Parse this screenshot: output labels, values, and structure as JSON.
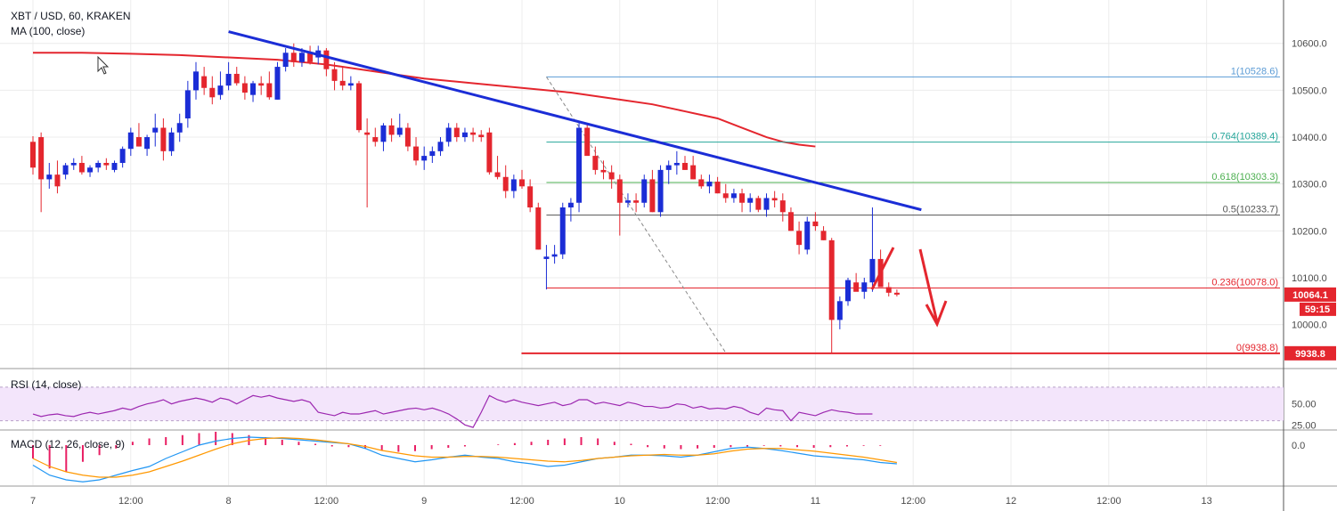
{
  "header": {
    "symbol": "XBT / USD, 60, KRAKEN",
    "ma": "MA (100, close)",
    "rsi": "RSI (14, close)",
    "macd": "MACD (12, 26, close, 9)"
  },
  "colors": {
    "up": "#1b2dd6",
    "down": "#e4262e",
    "ma": "#e4262e",
    "trend": "#1b2dd6",
    "rsi": "#9c27b0",
    "rsi_band": "#f3e5fb",
    "macd": "#2196f3",
    "signal": "#ff9800",
    "hist": "#e91e63",
    "grid": "#ececec"
  },
  "chart_data": {
    "type": "candlestick",
    "x_labels": [
      "7",
      "12:00",
      "8",
      "12:00",
      "9",
      "12:00",
      "10",
      "12:00",
      "11",
      "12:00",
      "12",
      "12:00",
      "13"
    ],
    "x_label_hours": [
      0,
      12,
      24,
      36,
      48,
      60,
      72,
      84,
      96,
      108,
      120,
      132,
      144
    ],
    "price_axis": {
      "ticks": [
        "10600.0",
        "10500.0",
        "10400.0",
        "10300.0",
        "10200.0",
        "10100.0",
        "10000.0"
      ],
      "tick_values": [
        10600,
        10500,
        10400,
        10300,
        10200,
        10100,
        10000
      ],
      "range": [
        9910,
        10685
      ]
    },
    "candles_ohlc": [
      [
        10390,
        10402,
        10320,
        10335
      ],
      [
        10400,
        10410,
        10240,
        10310
      ],
      [
        10310,
        10345,
        10290,
        10320
      ],
      [
        10320,
        10350,
        10280,
        10295
      ],
      [
        10320,
        10345,
        10310,
        10340
      ],
      [
        10340,
        10355,
        10330,
        10345
      ],
      [
        10345,
        10360,
        10320,
        10325
      ],
      [
        10325,
        10340,
        10315,
        10335
      ],
      [
        10335,
        10350,
        10325,
        10345
      ],
      [
        10345,
        10355,
        10330,
        10340
      ],
      [
        10330,
        10350,
        10325,
        10345
      ],
      [
        10345,
        10380,
        10335,
        10375
      ],
      [
        10375,
        10420,
        10360,
        10410
      ],
      [
        10400,
        10430,
        10380,
        10380
      ],
      [
        10375,
        10405,
        10360,
        10400
      ],
      [
        10410,
        10450,
        10380,
        10420
      ],
      [
        10420,
        10440,
        10350,
        10370
      ],
      [
        10370,
        10420,
        10360,
        10410
      ],
      [
        10410,
        10450,
        10390,
        10430
      ],
      [
        10440,
        10520,
        10420,
        10500
      ],
      [
        10500,
        10560,
        10480,
        10540
      ],
      [
        10530,
        10550,
        10490,
        10505
      ],
      [
        10505,
        10530,
        10470,
        10485
      ],
      [
        10490,
        10540,
        10480,
        10510
      ],
      [
        10510,
        10560,
        10500,
        10535
      ],
      [
        10535,
        10550,
        10510,
        10515
      ],
      [
        10515,
        10530,
        10480,
        10495
      ],
      [
        10490,
        10520,
        10475,
        10515
      ],
      [
        10515,
        10530,
        10490,
        10510
      ],
      [
        10515,
        10540,
        10480,
        10485
      ],
      [
        10480,
        10560,
        10480,
        10550
      ],
      [
        10550,
        10590,
        10540,
        10580
      ],
      [
        10580,
        10600,
        10550,
        10560
      ],
      [
        10560,
        10590,
        10550,
        10580
      ],
      [
        10580,
        10595,
        10555,
        10560
      ],
      [
        10570,
        10595,
        10555,
        10585
      ],
      [
        10585,
        10590,
        10530,
        10545
      ],
      [
        10545,
        10560,
        10500,
        10520
      ],
      [
        10520,
        10550,
        10500,
        10510
      ],
      [
        10510,
        10530,
        10500,
        10515
      ],
      [
        10515,
        10520,
        10410,
        10415
      ],
      [
        10410,
        10440,
        10250,
        10405
      ],
      [
        10400,
        10420,
        10380,
        10390
      ],
      [
        10390,
        10430,
        10370,
        10425
      ],
      [
        10425,
        10440,
        10390,
        10405
      ],
      [
        10405,
        10450,
        10400,
        10420
      ],
      [
        10420,
        10430,
        10370,
        10380
      ],
      [
        10380,
        10400,
        10340,
        10350
      ],
      [
        10350,
        10380,
        10330,
        10360
      ],
      [
        10360,
        10380,
        10345,
        10370
      ],
      [
        10370,
        10400,
        10360,
        10390
      ],
      [
        10390,
        10430,
        10380,
        10420
      ],
      [
        10420,
        10430,
        10390,
        10400
      ],
      [
        10400,
        10420,
        10390,
        10410
      ],
      [
        10410,
        10420,
        10390,
        10405
      ],
      [
        10405,
        10415,
        10390,
        10400
      ],
      [
        10410,
        10420,
        10320,
        10325
      ],
      [
        10325,
        10360,
        10310,
        10315
      ],
      [
        10315,
        10340,
        10270,
        10285
      ],
      [
        10285,
        10320,
        10270,
        10310
      ],
      [
        10310,
        10330,
        10290,
        10295
      ],
      [
        10295,
        10310,
        10240,
        10250
      ],
      [
        10250,
        10260,
        10160,
        10160
      ],
      [
        10140,
        10170,
        10075,
        10145
      ],
      [
        10145,
        10170,
        10130,
        10150
      ],
      [
        10150,
        10260,
        10140,
        10250
      ],
      [
        10250,
        10270,
        10220,
        10260
      ],
      [
        10260,
        10430,
        10240,
        10420
      ],
      [
        10420,
        10430,
        10380,
        10360
      ],
      [
        10360,
        10380,
        10320,
        10330
      ],
      [
        10330,
        10350,
        10310,
        10325
      ],
      [
        10325,
        10340,
        10290,
        10310
      ],
      [
        10310,
        10320,
        10190,
        10260
      ],
      [
        10260,
        10280,
        10250,
        10265
      ],
      [
        10265,
        10280,
        10240,
        10260
      ],
      [
        10260,
        10320,
        10250,
        10310
      ],
      [
        10310,
        10330,
        10240,
        10240
      ],
      [
        10240,
        10340,
        10230,
        10330
      ],
      [
        10330,
        10350,
        10300,
        10340
      ],
      [
        10340,
        10370,
        10320,
        10345
      ],
      [
        10345,
        10360,
        10330,
        10330
      ],
      [
        10340,
        10360,
        10310,
        10310
      ],
      [
        10310,
        10320,
        10290,
        10295
      ],
      [
        10295,
        10320,
        10280,
        10305
      ],
      [
        10305,
        10315,
        10280,
        10280
      ],
      [
        10280,
        10300,
        10260,
        10270
      ],
      [
        10270,
        10290,
        10260,
        10280
      ],
      [
        10280,
        10290,
        10240,
        10260
      ],
      [
        10260,
        10280,
        10240,
        10270
      ],
      [
        10270,
        10275,
        10240,
        10245
      ],
      [
        10245,
        10280,
        10230,
        10270
      ],
      [
        10270,
        10285,
        10250,
        10265
      ],
      [
        10265,
        10280,
        10220,
        10240
      ],
      [
        10240,
        10250,
        10200,
        10200
      ],
      [
        10200,
        10220,
        10150,
        10170
      ],
      [
        10160,
        10230,
        10150,
        10220
      ],
      [
        10220,
        10240,
        10200,
        10210
      ],
      [
        10200,
        10210,
        10180,
        10180
      ],
      [
        10180,
        10185,
        9938,
        10010
      ],
      [
        10010,
        10060,
        9990,
        10050
      ],
      [
        10050,
        10100,
        10040,
        10095
      ],
      [
        10090,
        10110,
        10080,
        10070
      ],
      [
        10070,
        10100,
        10055,
        10090
      ],
      [
        10090,
        10250,
        10070,
        10140
      ],
      [
        10140,
        10160,
        10080,
        10080
      ],
      [
        10080,
        10090,
        10060,
        10068
      ],
      [
        10068,
        10075,
        10060,
        10064
      ]
    ],
    "ma100": [
      [
        0,
        10580
      ],
      [
        6,
        10580
      ],
      [
        12,
        10578
      ],
      [
        18,
        10575
      ],
      [
        24,
        10570
      ],
      [
        30,
        10565
      ],
      [
        36,
        10555
      ],
      [
        42,
        10540
      ],
      [
        48,
        10525
      ],
      [
        54,
        10515
      ],
      [
        60,
        10505
      ],
      [
        66,
        10495
      ],
      [
        72,
        10480
      ],
      [
        76,
        10470
      ],
      [
        80,
        10455
      ],
      [
        84,
        10440
      ],
      [
        87,
        10420
      ],
      [
        90,
        10400
      ],
      [
        92,
        10390
      ],
      [
        94,
        10384
      ],
      [
        96,
        10380
      ]
    ],
    "rsi": {
      "ticks": [
        "50.00",
        "25.00"
      ],
      "tick_values": [
        50,
        25
      ],
      "band": [
        30,
        70
      ],
      "range": [
        20,
        90
      ],
      "values": [
        38,
        35,
        37,
        38,
        36,
        35,
        38,
        40,
        38,
        40,
        42,
        45,
        43,
        47,
        50,
        52,
        55,
        50,
        53,
        55,
        57,
        55,
        52,
        57,
        55,
        50,
        55,
        60,
        58,
        60,
        57,
        55,
        53,
        55,
        52,
        40,
        38,
        36,
        40,
        38,
        38,
        40,
        42,
        38,
        40,
        42,
        44,
        45,
        43,
        45,
        42,
        38,
        32,
        25,
        22,
        40,
        60,
        55,
        52,
        55,
        52,
        50,
        48,
        50,
        52,
        48,
        50,
        55,
        55,
        50,
        52,
        50,
        48,
        52,
        50,
        47,
        47,
        45,
        46,
        50,
        49,
        45,
        47,
        44,
        45,
        44,
        47,
        45,
        40,
        37,
        45,
        43,
        42,
        30,
        40,
        38,
        36,
        40,
        43,
        41,
        40,
        38,
        38,
        38
      ]
    },
    "macd": {
      "ticks": [
        "0.0"
      ],
      "tick_values": [
        0
      ],
      "range": [
        -60,
        20
      ],
      "macd": [
        -30,
        -45,
        -52,
        -55,
        -52,
        -45,
        -38,
        -32,
        -20,
        -10,
        0,
        6,
        10,
        12,
        11,
        10,
        8,
        6,
        4,
        2,
        -5,
        -15,
        -20,
        -25,
        -22,
        -18,
        -15,
        -18,
        -20,
        -25,
        -28,
        -32,
        -30,
        -25,
        -20,
        -18,
        -15,
        -15,
        -16,
        -18,
        -15,
        -10,
        -5,
        -3,
        -5,
        -8,
        -12,
        -16,
        -18,
        -20,
        -22,
        -26,
        -28
      ],
      "signal": [
        -20,
        -32,
        -40,
        -45,
        -48,
        -48,
        -45,
        -40,
        -32,
        -24,
        -15,
        -6,
        2,
        7,
        10,
        11,
        10,
        8,
        5,
        2,
        -2,
        -8,
        -12,
        -16,
        -18,
        -18,
        -17,
        -17,
        -18,
        -20,
        -22,
        -24,
        -25,
        -23,
        -20,
        -18,
        -16,
        -15,
        -14,
        -15,
        -15,
        -13,
        -9,
        -6,
        -5,
        -5,
        -7,
        -9,
        -12,
        -15,
        -18,
        -22,
        -26
      ],
      "hist": [
        -20,
        -35,
        -40,
        -25,
        -15,
        -5,
        5,
        10,
        12,
        15,
        18,
        20,
        18,
        15,
        12,
        8,
        5,
        2,
        -2,
        -3,
        -5,
        -8,
        -10,
        -9,
        -6,
        -4,
        -2,
        0,
        1,
        3,
        5,
        8,
        10,
        12,
        10,
        5,
        2,
        -3,
        -5,
        -6,
        -5,
        -4,
        -3,
        -2,
        -1,
        -2,
        -3,
        -4,
        -3,
        -2,
        -1,
        -1
      ]
    },
    "fibonacci": [
      {
        "ratio": "1",
        "value": 10528.6,
        "label": "1(10528.6)",
        "color": "#5b9bd5"
      },
      {
        "ratio": "0.764",
        "value": 10389.4,
        "label": "0.764(10389.4)",
        "color": "#26a69a"
      },
      {
        "ratio": "0.618",
        "value": 10303.3,
        "label": "0.618(10303.3)",
        "color": "#4caf50"
      },
      {
        "ratio": "0.5",
        "value": 10233.7,
        "label": "0.5(10233.7)",
        "color": "#555555"
      },
      {
        "ratio": "0.236",
        "value": 10078.0,
        "label": "0.236(10078.0)",
        "color": "#e4262e"
      },
      {
        "ratio": "0",
        "value": 9938.8,
        "label": "0(9938.8)",
        "color": "#e4262e"
      }
    ],
    "price_badges": [
      {
        "value": 10064.1,
        "label": "10064.1",
        "color": "#e4262e"
      },
      {
        "label": "59:15",
        "color": "#e4262e"
      },
      {
        "value": 9938.8,
        "label": "9938.8",
        "color": "#e4262e"
      }
    ],
    "trendline": [
      [
        24,
        10625
      ],
      [
        109,
        10245
      ]
    ],
    "fib_diagonal": [
      [
        63,
        10528.6
      ],
      [
        85,
        9940
      ]
    ]
  }
}
